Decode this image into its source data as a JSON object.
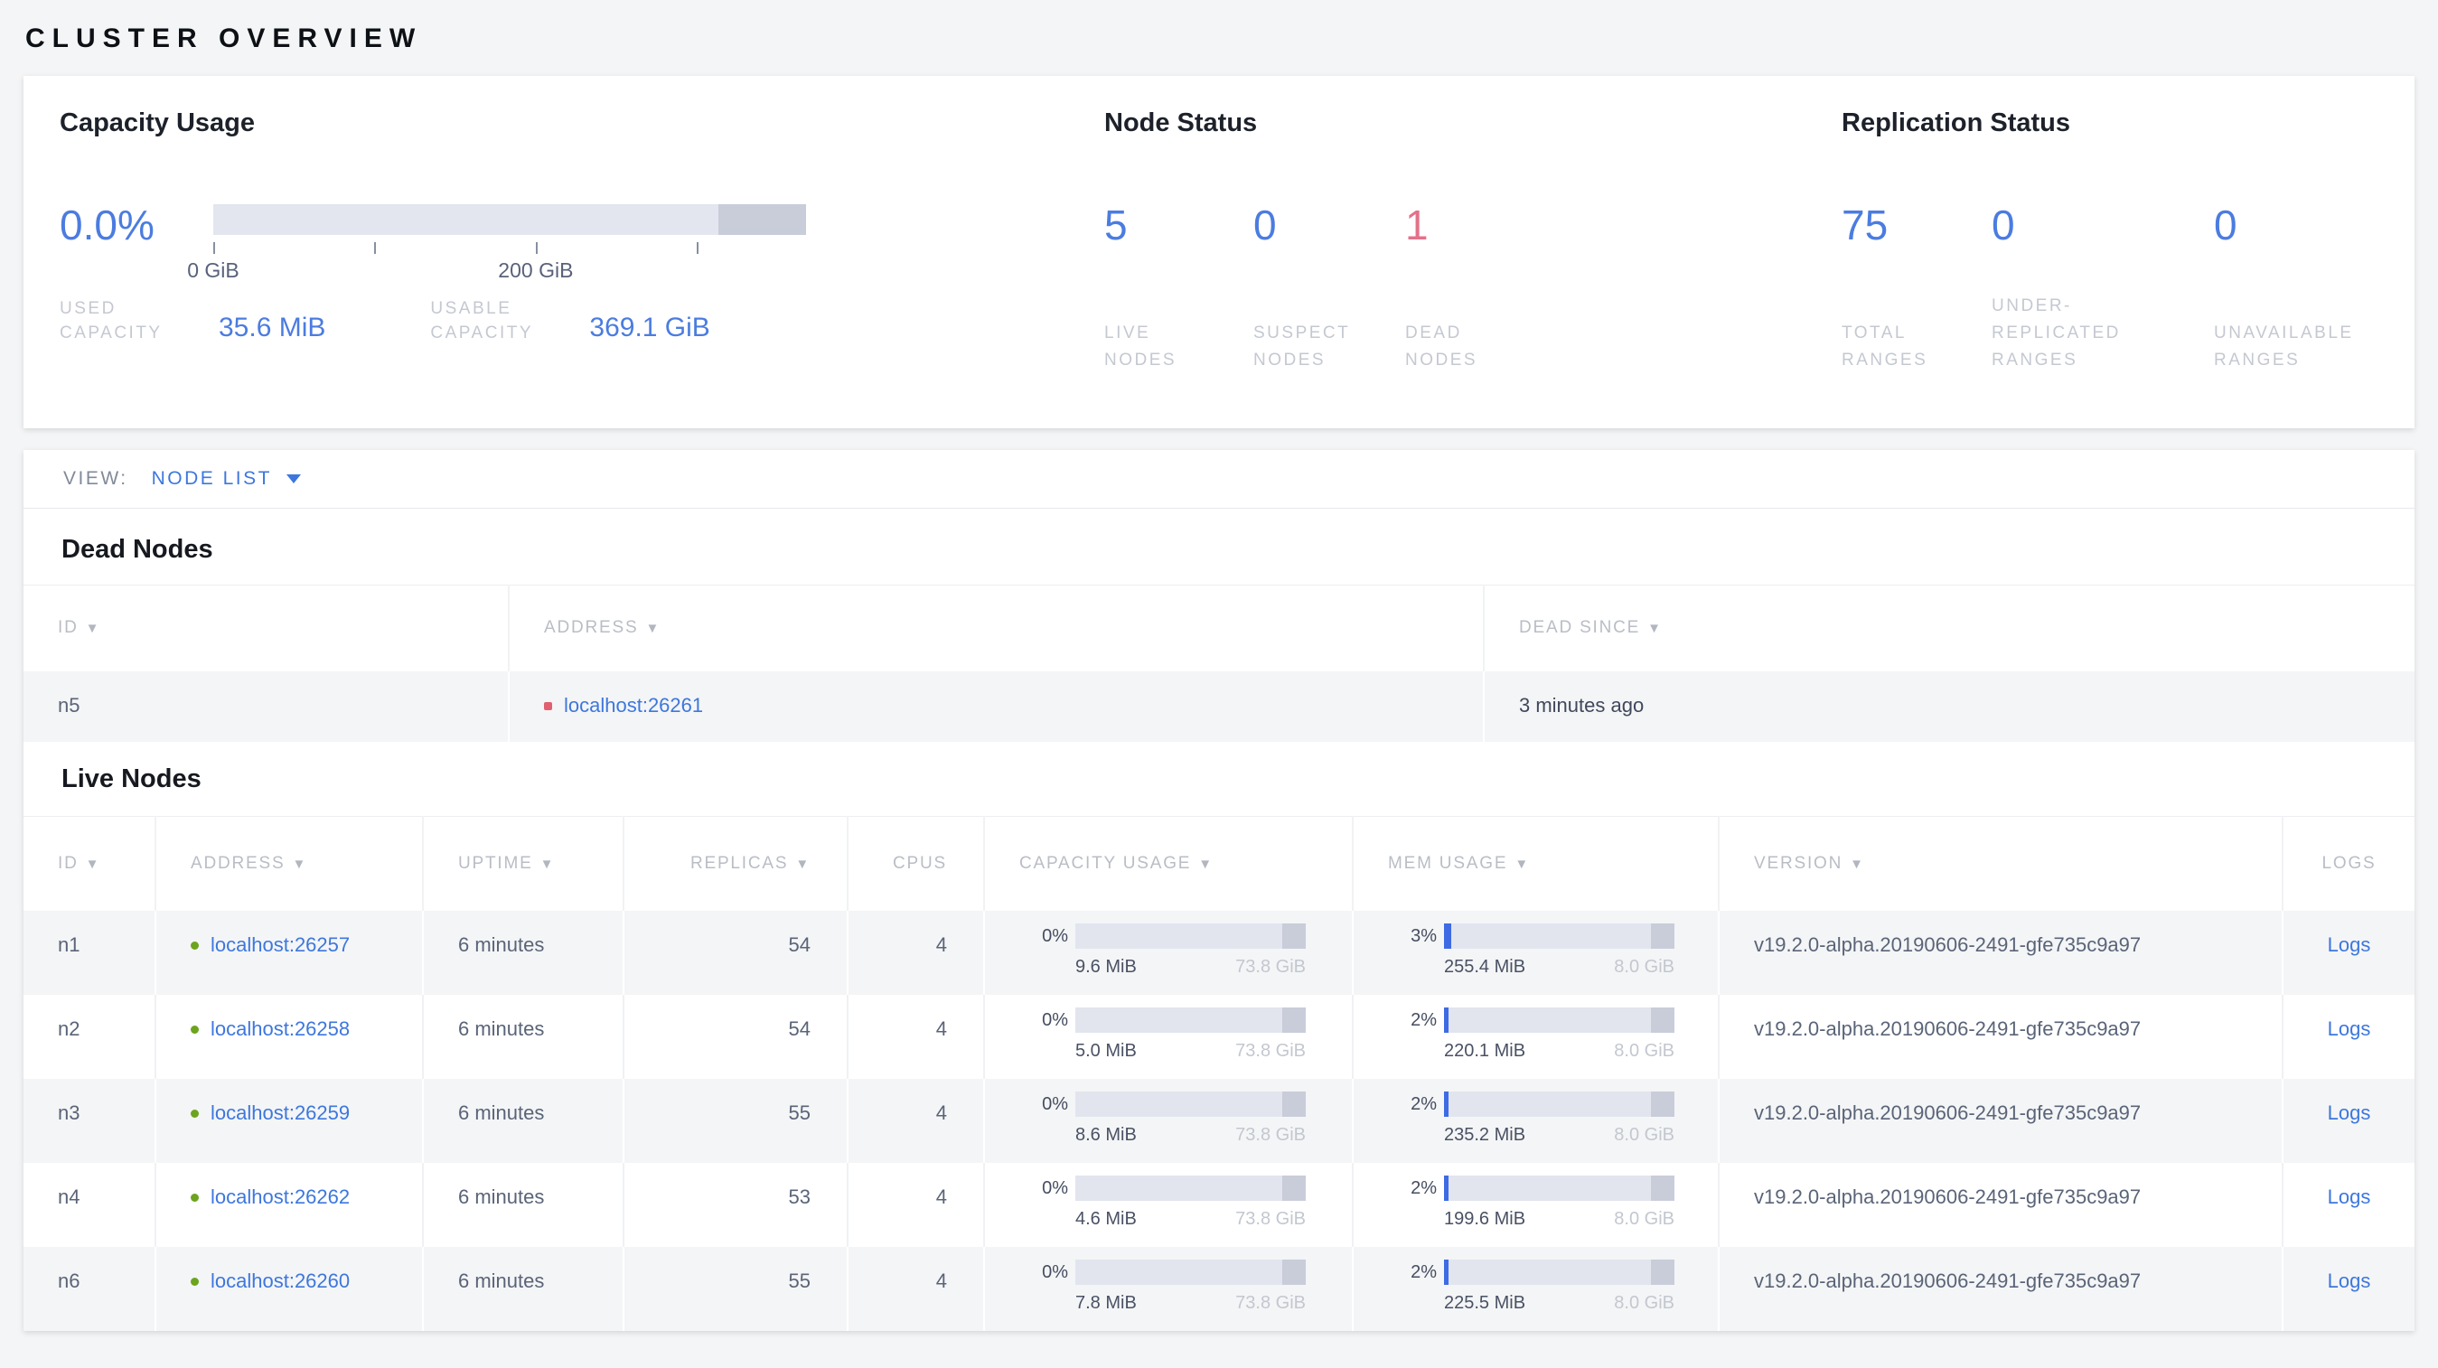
{
  "page": {
    "title": "CLUSTER OVERVIEW"
  },
  "colors": {
    "accent_blue": "#4b7ce0",
    "link_blue": "#3d77dd",
    "dead_red": "#e4718a",
    "dead_dot": "#e0606e",
    "live_dot": "#6ca41d",
    "bar_bg": "#e3e6ee",
    "bar_reserved": "#c9cdd9",
    "bar_fill": "#3e6be4",
    "row_gray": "#f4f5f6"
  },
  "icons": {
    "sort_desc": "▼",
    "view_caret": "caret-down",
    "live_status": "green-dot",
    "dead_status": "red-dot"
  },
  "summary": {
    "capacity": {
      "title": "Capacity Usage",
      "percent": "0.0%",
      "bar": {
        "fill_pct": 0,
        "reserved_pct": 14.8,
        "ticks": [
          {
            "label": "0 GiB",
            "pos_pct": 0
          },
          {
            "label": "",
            "pos_pct": 27.2
          },
          {
            "label": "200 GiB",
            "pos_pct": 54.4
          },
          {
            "label": "",
            "pos_pct": 81.6
          }
        ]
      },
      "used_label": "USED\nCAPACITY",
      "used_value": "35.6 MiB",
      "usable_label": "USABLE\nCAPACITY",
      "usable_value": "369.1 GiB"
    },
    "node_status": {
      "title": "Node Status",
      "stats": [
        {
          "value": "5",
          "label": "LIVE\nNODES",
          "status": "live"
        },
        {
          "value": "0",
          "label": "SUSPECT\nNODES",
          "status": "suspect"
        },
        {
          "value": "1",
          "label": "DEAD\nNODES",
          "status": "dead"
        }
      ]
    },
    "replication": {
      "title": "Replication Status",
      "stats": [
        {
          "value": "75",
          "label": "TOTAL\nRANGES",
          "status": "normal"
        },
        {
          "value": "0",
          "label": "UNDER-\nREPLICATED\nRANGES",
          "status": "normal"
        },
        {
          "value": "0",
          "label": "UNAVAILABLE\nRANGES",
          "status": "normal"
        }
      ]
    }
  },
  "view_bar": {
    "label": "VIEW:",
    "selected": "NODE LIST"
  },
  "dead_nodes": {
    "title": "Dead Nodes",
    "columns": [
      {
        "label": "ID",
        "sortable": true
      },
      {
        "label": "ADDRESS",
        "sortable": true
      },
      {
        "label": "DEAD SINCE",
        "sortable": true
      }
    ],
    "rows": [
      {
        "id": "n5",
        "address": "localhost:26261",
        "dead_since": "3 minutes ago"
      }
    ]
  },
  "live_nodes": {
    "title": "Live Nodes",
    "columns": [
      {
        "label": "ID",
        "sortable": true
      },
      {
        "label": "ADDRESS",
        "sortable": true
      },
      {
        "label": "UPTIME",
        "sortable": true
      },
      {
        "label": "REPLICAS",
        "sortable": true
      },
      {
        "label": "CPUS",
        "sortable": false
      },
      {
        "label": "CAPACITY USAGE",
        "sortable": true
      },
      {
        "label": "MEM USAGE",
        "sortable": true
      },
      {
        "label": "VERSION",
        "sortable": true
      },
      {
        "label": "LOGS",
        "sortable": false
      }
    ],
    "logs_label": "Logs",
    "rows": [
      {
        "id": "n1",
        "address": "localhost:26257",
        "uptime": "6 minutes",
        "replicas": "54",
        "cpus": "4",
        "capacity": {
          "percent": "0%",
          "fill_pct": 0,
          "used": "9.6 MiB",
          "total": "73.8 GiB"
        },
        "memory": {
          "percent": "3%",
          "fill_pct": 3,
          "used": "255.4 MiB",
          "total": "8.0 GiB"
        },
        "version": "v19.2.0-alpha.20190606-2491-gfe735c9a97"
      },
      {
        "id": "n2",
        "address": "localhost:26258",
        "uptime": "6 minutes",
        "replicas": "54",
        "cpus": "4",
        "capacity": {
          "percent": "0%",
          "fill_pct": 0,
          "used": "5.0 MiB",
          "total": "73.8 GiB"
        },
        "memory": {
          "percent": "2%",
          "fill_pct": 2,
          "used": "220.1 MiB",
          "total": "8.0 GiB"
        },
        "version": "v19.2.0-alpha.20190606-2491-gfe735c9a97"
      },
      {
        "id": "n3",
        "address": "localhost:26259",
        "uptime": "6 minutes",
        "replicas": "55",
        "cpus": "4",
        "capacity": {
          "percent": "0%",
          "fill_pct": 0,
          "used": "8.6 MiB",
          "total": "73.8 GiB"
        },
        "memory": {
          "percent": "2%",
          "fill_pct": 2,
          "used": "235.2 MiB",
          "total": "8.0 GiB"
        },
        "version": "v19.2.0-alpha.20190606-2491-gfe735c9a97"
      },
      {
        "id": "n4",
        "address": "localhost:26262",
        "uptime": "6 minutes",
        "replicas": "53",
        "cpus": "4",
        "capacity": {
          "percent": "0%",
          "fill_pct": 0,
          "used": "4.6 MiB",
          "total": "73.8 GiB"
        },
        "memory": {
          "percent": "2%",
          "fill_pct": 2,
          "used": "199.6 MiB",
          "total": "8.0 GiB"
        },
        "version": "v19.2.0-alpha.20190606-2491-gfe735c9a97"
      },
      {
        "id": "n6",
        "address": "localhost:26260",
        "uptime": "6 minutes",
        "replicas": "55",
        "cpus": "4",
        "capacity": {
          "percent": "0%",
          "fill_pct": 0,
          "used": "7.8 MiB",
          "total": "73.8 GiB"
        },
        "memory": {
          "percent": "2%",
          "fill_pct": 2,
          "used": "225.5 MiB",
          "total": "8.0 GiB"
        },
        "version": "v19.2.0-alpha.20190606-2491-gfe735c9a97"
      }
    ]
  }
}
